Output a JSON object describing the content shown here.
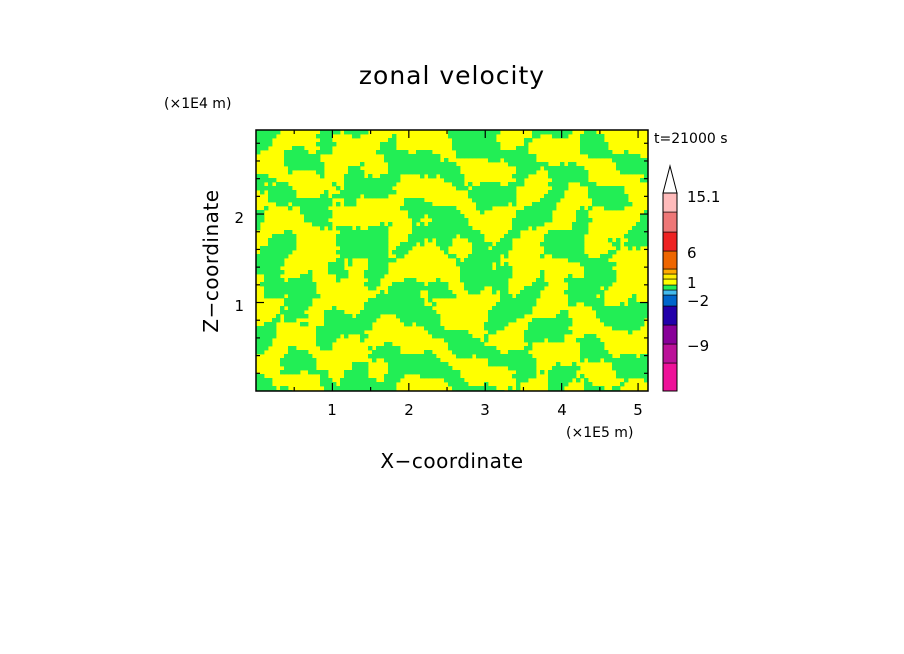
{
  "chart_data": {
    "type": "heatmap",
    "title": "zonal velocity",
    "xlabel": "X−coordinate",
    "ylabel": "Z−coordinate",
    "x_scale_label": "(×1E5 m)",
    "y_scale_label": "(×1E4 m)",
    "time_label": "t=21000 s",
    "xlim": [
      0,
      5.13
    ],
    "ylim": [
      0,
      2.95
    ],
    "x_ticks": [
      1,
      2,
      3,
      4,
      5
    ],
    "y_ticks": [
      1,
      2
    ],
    "x_tick_labels": [
      "1",
      "2",
      "3",
      "4",
      "5"
    ],
    "y_tick_labels": [
      "1",
      "2"
    ],
    "field_colors": [
      "#ffff00",
      "#22ee55"
    ],
    "colorbar": {
      "levels": [
        -15.1,
        -12,
        -9,
        -6,
        -4,
        -2,
        -1,
        0,
        1,
        2,
        4,
        6,
        9,
        12,
        15.1
      ],
      "colors": [
        "#ee1199",
        "#bb1199",
        "#880099",
        "#2200aa",
        "#0066cc",
        "#44bbee",
        "#22ee55",
        "#ffff00",
        "#ffee00",
        "#ffaa00",
        "#ee6600",
        "#ee2222",
        "#ee7777",
        "#ffbbbb"
      ],
      "labels": [
        "15.1",
        "6",
        "1",
        "−2",
        "−9"
      ],
      "label_values": [
        15.1,
        6,
        1,
        -2,
        -9
      ],
      "extend_top": true,
      "extend_top_color": "#ffffff"
    }
  }
}
